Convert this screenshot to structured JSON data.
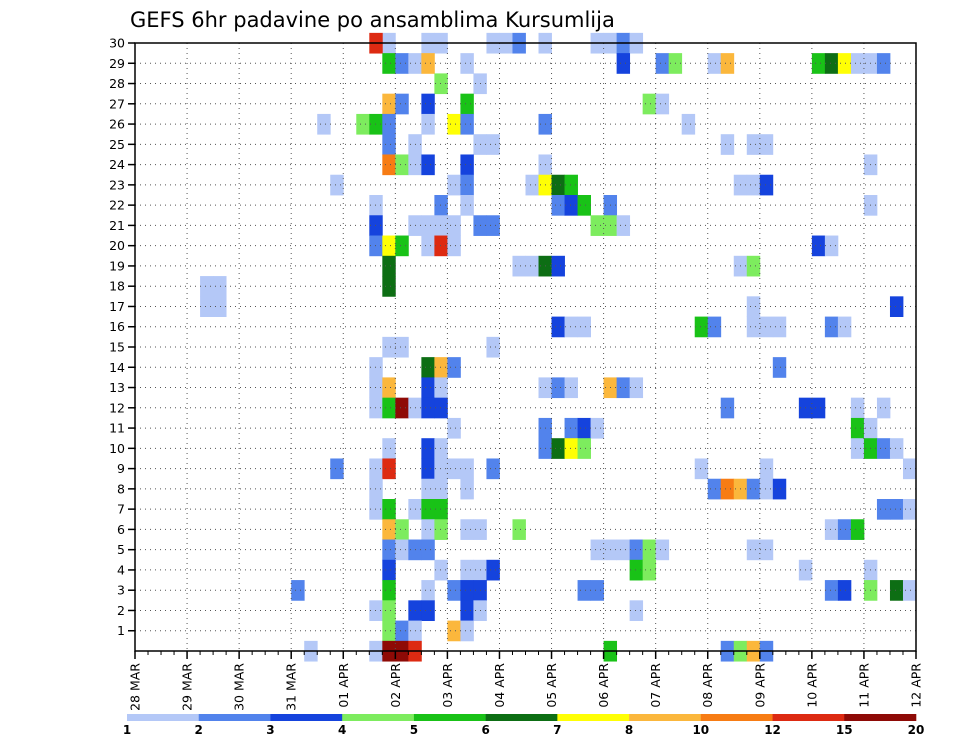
{
  "chart_data": {
    "type": "heatmap",
    "title": "GEFS 6hr padavine po ansamblima Kursumlija",
    "x_tick_labels": [
      "28 MAR",
      "29 MAR",
      "30 MAR",
      "31 MAR",
      "01 APR",
      "02 APR",
      "03 APR",
      "04 APR",
      "05 APR",
      "06 APR",
      "07 APR",
      "08 APR",
      "09 APR",
      "10 APR",
      "11 APR",
      "12 APR"
    ],
    "y_tick_labels": [
      "1",
      "2",
      "3",
      "4",
      "5",
      "6",
      "7",
      "8",
      "9",
      "10",
      "11",
      "12",
      "13",
      "14",
      "15",
      "16",
      "17",
      "18",
      "19",
      "20",
      "21",
      "22",
      "23",
      "24",
      "25",
      "26",
      "27",
      "28",
      "29",
      "30"
    ],
    "xlim": [
      0,
      60
    ],
    "ylim": [
      0,
      30
    ],
    "grid": true,
    "steps_per_day": 4,
    "legend": {
      "placement": "bottom",
      "labels": [
        "1",
        "2",
        "3",
        "4",
        "5",
        "6",
        "7",
        "8",
        "10",
        "12",
        "15",
        "20"
      ],
      "colors": [
        "#b4c8f7",
        "#5283ec",
        "#1543dd",
        "#7dec5e",
        "#19c217",
        "#0d6e14",
        "#ffff05",
        "#fbb73c",
        "#f77c14",
        "#dd2a12",
        "#8e0a06"
      ]
    },
    "cells": [
      [
        30,
        19,
        0
      ],
      [
        30,
        18,
        9
      ],
      [
        30,
        22,
        0
      ],
      [
        30,
        23,
        0
      ],
      [
        30,
        27,
        0
      ],
      [
        30,
        28,
        0
      ],
      [
        30,
        29,
        1
      ],
      [
        30,
        31,
        0
      ],
      [
        30,
        35,
        0
      ],
      [
        30,
        36,
        0
      ],
      [
        30,
        37,
        1
      ],
      [
        30,
        38,
        0
      ],
      [
        29,
        19,
        4
      ],
      [
        29,
        20,
        1
      ],
      [
        29,
        21,
        0
      ],
      [
        29,
        22,
        7
      ],
      [
        29,
        25,
        0
      ],
      [
        29,
        37,
        2
      ],
      [
        29,
        40,
        1
      ],
      [
        29,
        41,
        3
      ],
      [
        29,
        44,
        0
      ],
      [
        29,
        45,
        7
      ],
      [
        29,
        52,
        4
      ],
      [
        29,
        53,
        5
      ],
      [
        29,
        54,
        6
      ],
      [
        29,
        55,
        0
      ],
      [
        29,
        56,
        0
      ],
      [
        29,
        57,
        1
      ],
      [
        28,
        23,
        3
      ],
      [
        28,
        26,
        0
      ],
      [
        27,
        19,
        7
      ],
      [
        27,
        20,
        1
      ],
      [
        27,
        22,
        2
      ],
      [
        27,
        25,
        4
      ],
      [
        27,
        39,
        3
      ],
      [
        27,
        40,
        0
      ],
      [
        26,
        14,
        0
      ],
      [
        26,
        17,
        3
      ],
      [
        26,
        18,
        4
      ],
      [
        26,
        19,
        1
      ],
      [
        26,
        22,
        0
      ],
      [
        26,
        24,
        6
      ],
      [
        26,
        25,
        1
      ],
      [
        26,
        31,
        1
      ],
      [
        26,
        42,
        0
      ],
      [
        25,
        19,
        1
      ],
      [
        25,
        21,
        0
      ],
      [
        25,
        26,
        0
      ],
      [
        25,
        27,
        0
      ],
      [
        25,
        45,
        0
      ],
      [
        25,
        47,
        0
      ],
      [
        25,
        48,
        0
      ],
      [
        24,
        19,
        8
      ],
      [
        24,
        20,
        3
      ],
      [
        24,
        21,
        0
      ],
      [
        24,
        22,
        2
      ],
      [
        24,
        25,
        2
      ],
      [
        24,
        31,
        0
      ],
      [
        24,
        56,
        0
      ],
      [
        23,
        15,
        0
      ],
      [
        23,
        24,
        0
      ],
      [
        23,
        25,
        1
      ],
      [
        23,
        30,
        0
      ],
      [
        23,
        31,
        6
      ],
      [
        23,
        32,
        5
      ],
      [
        23,
        33,
        4
      ],
      [
        23,
        46,
        0
      ],
      [
        23,
        47,
        0
      ],
      [
        23,
        48,
        2
      ],
      [
        22,
        18,
        0
      ],
      [
        22,
        23,
        1
      ],
      [
        22,
        25,
        0
      ],
      [
        22,
        32,
        1
      ],
      [
        22,
        33,
        2
      ],
      [
        22,
        34,
        4
      ],
      [
        22,
        36,
        1
      ],
      [
        22,
        56,
        0
      ],
      [
        21,
        18,
        2
      ],
      [
        21,
        21,
        0
      ],
      [
        21,
        22,
        0
      ],
      [
        21,
        23,
        0
      ],
      [
        21,
        24,
        0
      ],
      [
        21,
        26,
        1
      ],
      [
        21,
        27,
        1
      ],
      [
        21,
        35,
        3
      ],
      [
        21,
        36,
        3
      ],
      [
        21,
        37,
        0
      ],
      [
        20,
        18,
        1
      ],
      [
        20,
        19,
        6
      ],
      [
        20,
        20,
        4
      ],
      [
        20,
        22,
        0
      ],
      [
        20,
        23,
        9
      ],
      [
        20,
        24,
        0
      ],
      [
        20,
        52,
        2
      ],
      [
        20,
        53,
        0
      ],
      [
        19,
        19,
        5
      ],
      [
        19,
        29,
        0
      ],
      [
        19,
        30,
        0
      ],
      [
        19,
        31,
        5
      ],
      [
        19,
        32,
        2
      ],
      [
        19,
        46,
        0
      ],
      [
        19,
        47,
        3
      ],
      [
        18,
        19,
        5
      ],
      [
        18,
        5,
        0
      ],
      [
        18,
        6,
        0
      ],
      [
        17,
        5,
        0
      ],
      [
        17,
        6,
        0
      ],
      [
        17,
        47,
        0
      ],
      [
        17,
        58,
        2
      ],
      [
        16,
        32,
        2
      ],
      [
        16,
        33,
        0
      ],
      [
        16,
        34,
        0
      ],
      [
        16,
        43,
        4
      ],
      [
        16,
        44,
        1
      ],
      [
        16,
        47,
        0
      ],
      [
        16,
        48,
        0
      ],
      [
        16,
        49,
        0
      ],
      [
        16,
        53,
        1
      ],
      [
        16,
        54,
        0
      ],
      [
        15,
        19,
        0
      ],
      [
        15,
        20,
        0
      ],
      [
        15,
        27,
        0
      ],
      [
        14,
        18,
        0
      ],
      [
        14,
        22,
        5
      ],
      [
        14,
        23,
        7
      ],
      [
        14,
        24,
        1
      ],
      [
        14,
        49,
        1
      ],
      [
        13,
        18,
        0
      ],
      [
        13,
        19,
        7
      ],
      [
        13,
        22,
        2
      ],
      [
        13,
        23,
        0
      ],
      [
        13,
        31,
        0
      ],
      [
        13,
        32,
        1
      ],
      [
        13,
        33,
        0
      ],
      [
        13,
        36,
        7
      ],
      [
        13,
        37,
        1
      ],
      [
        13,
        38,
        0
      ],
      [
        12,
        18,
        0
      ],
      [
        12,
        19,
        4
      ],
      [
        12,
        20,
        10
      ],
      [
        12,
        21,
        0
      ],
      [
        12,
        22,
        2
      ],
      [
        12,
        23,
        2
      ],
      [
        12,
        45,
        1
      ],
      [
        12,
        51,
        2
      ],
      [
        12,
        52,
        2
      ],
      [
        12,
        55,
        0
      ],
      [
        12,
        57,
        0
      ],
      [
        11,
        24,
        0
      ],
      [
        11,
        31,
        1
      ],
      [
        11,
        33,
        1
      ],
      [
        11,
        34,
        2
      ],
      [
        11,
        35,
        0
      ],
      [
        11,
        55,
        4
      ],
      [
        11,
        56,
        0
      ],
      [
        10,
        19,
        0
      ],
      [
        10,
        22,
        2
      ],
      [
        10,
        23,
        0
      ],
      [
        10,
        31,
        1
      ],
      [
        10,
        32,
        5
      ],
      [
        10,
        33,
        6
      ],
      [
        10,
        34,
        3
      ],
      [
        10,
        55,
        0
      ],
      [
        10,
        56,
        4
      ],
      [
        10,
        57,
        1
      ],
      [
        10,
        58,
        0
      ],
      [
        9,
        15,
        1
      ],
      [
        9,
        18,
        0
      ],
      [
        9,
        19,
        9
      ],
      [
        9,
        22,
        2
      ],
      [
        9,
        23,
        0
      ],
      [
        9,
        24,
        0
      ],
      [
        9,
        25,
        0
      ],
      [
        9,
        27,
        1
      ],
      [
        9,
        43,
        0
      ],
      [
        9,
        48,
        0
      ],
      [
        9,
        59,
        0
      ],
      [
        8,
        18,
        0
      ],
      [
        8,
        22,
        0
      ],
      [
        8,
        23,
        0
      ],
      [
        8,
        25,
        0
      ],
      [
        8,
        44,
        1
      ],
      [
        8,
        45,
        8
      ],
      [
        8,
        46,
        7
      ],
      [
        8,
        47,
        1
      ],
      [
        8,
        48,
        0
      ],
      [
        8,
        49,
        2
      ],
      [
        7,
        18,
        0
      ],
      [
        7,
        19,
        4
      ],
      [
        7,
        21,
        0
      ],
      [
        7,
        22,
        4
      ],
      [
        7,
        23,
        4
      ],
      [
        7,
        57,
        1
      ],
      [
        7,
        58,
        1
      ],
      [
        7,
        59,
        0
      ],
      [
        6,
        19,
        7
      ],
      [
        6,
        20,
        3
      ],
      [
        6,
        22,
        0
      ],
      [
        6,
        23,
        3
      ],
      [
        6,
        25,
        0
      ],
      [
        6,
        26,
        0
      ],
      [
        6,
        29,
        3
      ],
      [
        6,
        53,
        0
      ],
      [
        6,
        54,
        1
      ],
      [
        6,
        55,
        4
      ],
      [
        5,
        19,
        1
      ],
      [
        5,
        20,
        0
      ],
      [
        5,
        21,
        1
      ],
      [
        5,
        22,
        1
      ],
      [
        5,
        35,
        0
      ],
      [
        5,
        36,
        0
      ],
      [
        5,
        37,
        0
      ],
      [
        5,
        38,
        1
      ],
      [
        5,
        39,
        3
      ],
      [
        5,
        40,
        0
      ],
      [
        5,
        47,
        0
      ],
      [
        5,
        48,
        0
      ],
      [
        4,
        19,
        2
      ],
      [
        4,
        23,
        0
      ],
      [
        4,
        25,
        0
      ],
      [
        4,
        26,
        0
      ],
      [
        4,
        27,
        2
      ],
      [
        4,
        38,
        4
      ],
      [
        4,
        39,
        3
      ],
      [
        4,
        51,
        0
      ],
      [
        4,
        56,
        0
      ],
      [
        3,
        12,
        1
      ],
      [
        3,
        19,
        4
      ],
      [
        3,
        22,
        0
      ],
      [
        3,
        24,
        1
      ],
      [
        3,
        25,
        2
      ],
      [
        3,
        26,
        2
      ],
      [
        3,
        34,
        1
      ],
      [
        3,
        35,
        1
      ],
      [
        3,
        53,
        1
      ],
      [
        3,
        54,
        2
      ],
      [
        3,
        56,
        3
      ],
      [
        3,
        58,
        5
      ],
      [
        3,
        59,
        0
      ],
      [
        2,
        18,
        0
      ],
      [
        2,
        19,
        3
      ],
      [
        2,
        21,
        2
      ],
      [
        2,
        22,
        2
      ],
      [
        2,
        25,
        2
      ],
      [
        2,
        26,
        0
      ],
      [
        2,
        38,
        0
      ],
      [
        1,
        19,
        3
      ],
      [
        1,
        20,
        1
      ],
      [
        1,
        21,
        0
      ],
      [
        1,
        24,
        7
      ],
      [
        1,
        25,
        0
      ],
      [
        0,
        13,
        0
      ],
      [
        0,
        18,
        0
      ],
      [
        0,
        19,
        10
      ],
      [
        0,
        20,
        10
      ],
      [
        0,
        21,
        9
      ],
      [
        0,
        36,
        4
      ],
      [
        0,
        45,
        1
      ],
      [
        0,
        46,
        3
      ],
      [
        0,
        47,
        7
      ],
      [
        0,
        48,
        1
      ]
    ]
  }
}
